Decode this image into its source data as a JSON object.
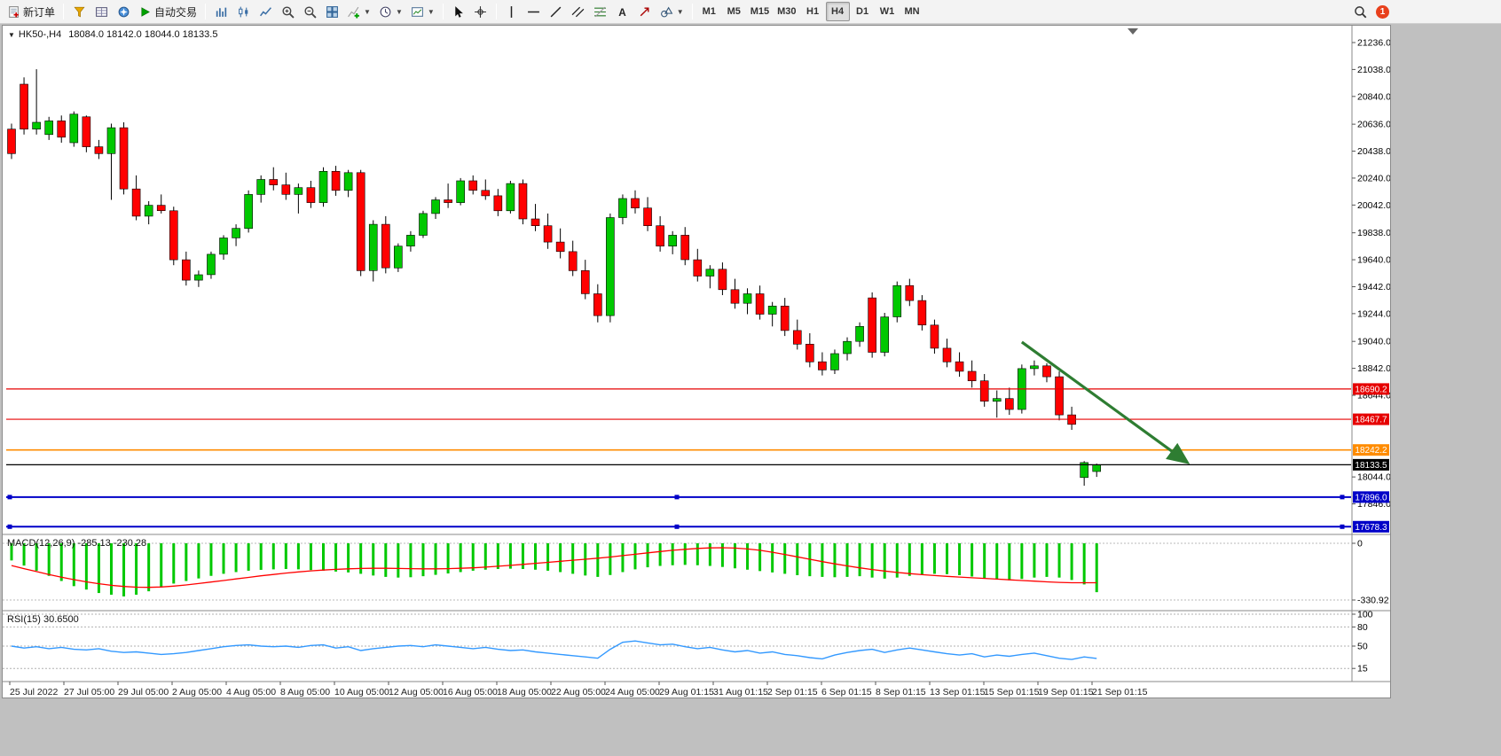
{
  "toolbar": {
    "groups": [
      {
        "items": [
          {
            "icon": "new-order",
            "label": "新订单",
            "name": "new-order-button"
          }
        ]
      },
      {
        "items": [
          {
            "icon": "market-watch",
            "name": "market-watch-button"
          },
          {
            "icon": "data-window",
            "name": "data-window-button"
          },
          {
            "icon": "navigator",
            "name": "navigator-button"
          },
          {
            "icon": "autotrade",
            "label": "自动交易",
            "name": "autotrade-button"
          }
        ]
      },
      {
        "items": [
          {
            "icon": "bar-chart",
            "name": "bar-chart-button"
          },
          {
            "icon": "candle-chart",
            "name": "candle-chart-button"
          },
          {
            "icon": "line-chart",
            "name": "line-chart-button"
          },
          {
            "icon": "zoom-in",
            "name": "zoom-in-button"
          },
          {
            "icon": "zoom-out",
            "name": "zoom-out-button"
          },
          {
            "icon": "tile-windows",
            "name": "tile-windows-button"
          },
          {
            "icon": "indicators",
            "caret": true,
            "name": "indicators-button"
          },
          {
            "icon": "clock",
            "caret": true,
            "name": "periods-button"
          },
          {
            "icon": "template",
            "caret": true,
            "name": "templates-button"
          }
        ]
      },
      {
        "items": [
          {
            "icon": "cursor",
            "name": "cursor-button"
          },
          {
            "icon": "crosshair",
            "name": "crosshair-button"
          }
        ]
      },
      {
        "items": [
          {
            "icon": "vline",
            "name": "vertical-line-button"
          },
          {
            "icon": "hline",
            "name": "horizontal-line-button"
          },
          {
            "icon": "trendline",
            "name": "trendline-button"
          },
          {
            "icon": "channel",
            "name": "channel-button"
          },
          {
            "icon": "fibo",
            "name": "fibonacci-button"
          },
          {
            "icon": "text",
            "name": "text-button"
          },
          {
            "icon": "arrows",
            "name": "arrows-button"
          },
          {
            "icon": "shapes",
            "caret": true,
            "name": "shapes-button"
          }
        ]
      },
      {
        "items": [
          {
            "label": "M1",
            "name": "tf-m1",
            "tf": true
          },
          {
            "label": "M5",
            "name": "tf-m5",
            "tf": true
          },
          {
            "label": "M15",
            "name": "tf-m15",
            "tf": true
          },
          {
            "label": "M30",
            "name": "tf-m30",
            "tf": true
          },
          {
            "label": "H1",
            "name": "tf-h1",
            "tf": true
          },
          {
            "label": "H4",
            "name": "tf-h4",
            "tf": true,
            "active": true
          },
          {
            "label": "D1",
            "name": "tf-d1",
            "tf": true
          },
          {
            "label": "W1",
            "name": "tf-w1",
            "tf": true
          },
          {
            "label": "MN",
            "name": "tf-mn",
            "tf": true
          }
        ]
      }
    ],
    "right": [
      {
        "icon": "search",
        "name": "search-button"
      },
      {
        "icon": "badge",
        "label": "1",
        "name": "notification-badge"
      }
    ]
  },
  "chart": {
    "menu_icon": "▼",
    "symbol": "HK50-,H4",
    "ohlc": "18084.0 18142.0 18044.0 18133.5",
    "up_color": "#00c800",
    "down_color": "#ff0000",
    "price_ticks": [
      "21236.0",
      "21038.0",
      "20840.0",
      "20636.0",
      "20438.0",
      "20240.0",
      "20042.0",
      "19838.0",
      "19640.0",
      "19442.0",
      "19244.0",
      "19040.0",
      "18842.0",
      "18644.0",
      "18044.0",
      "17846.0"
    ],
    "price_tick_values": [
      21236.0,
      21038.0,
      20840.0,
      20636.0,
      20438.0,
      20240.0,
      20042.0,
      19838.0,
      19640.0,
      19442.0,
      19244.0,
      19040.0,
      18842.0,
      18644.0,
      18044.0,
      17846.0
    ],
    "price_tags": [
      {
        "label": "18690.2",
        "price": 18690.2,
        "color": "#e60000",
        "name": "price-tag-18690-2"
      },
      {
        "label": "18467.7",
        "price": 18467.7,
        "color": "#e60000",
        "name": "price-tag-18467-7"
      },
      {
        "label": "18242.2",
        "price": 18242.2,
        "color": "#ff8c00",
        "name": "price-tag-18242-2"
      },
      {
        "label": "18133.5",
        "price": 18133.5,
        "color": "#000000",
        "name": "price-tag-18133-5"
      },
      {
        "label": "17896.0",
        "price": 17896.0,
        "color": "#0000c8",
        "name": "price-tag-17896-0"
      },
      {
        "label": "17678.3",
        "price": 17678.3,
        "color": "#0000c8",
        "name": "price-tag-17678-3"
      }
    ],
    "hlines": [
      {
        "price": 18690.2,
        "color": "#e60000",
        "width": 1.2,
        "handles": false,
        "name": "hline-red-18690-2"
      },
      {
        "price": 18467.7,
        "color": "#e60000",
        "width": 1.2,
        "handles": false,
        "name": "hline-red-18467-7"
      },
      {
        "price": 18242.2,
        "color": "#ff8c00",
        "width": 1.6,
        "handles": false,
        "name": "hline-orange-18242-2"
      },
      {
        "price": 18133.5,
        "color": "#000000",
        "width": 1.2,
        "handles": false,
        "name": "hline-black-18133-5"
      },
      {
        "price": 17896.0,
        "color": "#0000c8",
        "width": 2,
        "handles": true,
        "name": "hline-blue-17896-0"
      },
      {
        "price": 17678.3,
        "color": "#0000c8",
        "width": 2,
        "handles": true,
        "name": "hline-blue-17678-3"
      }
    ],
    "arrow": {
      "from_index": 81,
      "from_price": 19035,
      "to_index": 94.2,
      "to_price": 18155,
      "color": "#2e7d32"
    },
    "candles": [
      [
        20600,
        20640,
        20380,
        20420
      ],
      [
        20930,
        20980,
        20560,
        20600
      ],
      [
        20600,
        21040,
        20560,
        20650
      ],
      [
        20560,
        20690,
        20520,
        20660
      ],
      [
        20660,
        20700,
        20500,
        20540
      ],
      [
        20500,
        20730,
        20470,
        20710
      ],
      [
        20690,
        20700,
        20430,
        20470
      ],
      [
        20470,
        20520,
        20380,
        20420
      ],
      [
        20420,
        20640,
        20080,
        20610
      ],
      [
        20610,
        20650,
        20120,
        20160
      ],
      [
        20160,
        20260,
        19930,
        19960
      ],
      [
        19960,
        20070,
        19900,
        20040
      ],
      [
        20040,
        20120,
        19980,
        20000
      ],
      [
        20000,
        20030,
        19600,
        19640
      ],
      [
        19640,
        19700,
        19450,
        19490
      ],
      [
        19490,
        19560,
        19440,
        19530
      ],
      [
        19530,
        19700,
        19500,
        19680
      ],
      [
        19680,
        19820,
        19640,
        19800
      ],
      [
        19800,
        19900,
        19740,
        19870
      ],
      [
        19870,
        20150,
        19840,
        20120
      ],
      [
        20120,
        20260,
        20060,
        20230
      ],
      [
        20230,
        20320,
        20150,
        20190
      ],
      [
        20190,
        20280,
        20080,
        20120
      ],
      [
        20120,
        20200,
        19980,
        20170
      ],
      [
        20170,
        20220,
        20020,
        20060
      ],
      [
        20060,
        20320,
        20030,
        20290
      ],
      [
        20290,
        20330,
        20110,
        20150
      ],
      [
        20150,
        20300,
        20100,
        20280
      ],
      [
        20280,
        20300,
        19520,
        19560
      ],
      [
        19560,
        19930,
        19480,
        19900
      ],
      [
        19900,
        19960,
        19540,
        19580
      ],
      [
        19580,
        19760,
        19550,
        19740
      ],
      [
        19740,
        19850,
        19700,
        19820
      ],
      [
        19820,
        20000,
        19800,
        19980
      ],
      [
        19980,
        20100,
        19940,
        20080
      ],
      [
        20080,
        20200,
        20020,
        20060
      ],
      [
        20060,
        20240,
        20040,
        20220
      ],
      [
        20220,
        20260,
        20120,
        20150
      ],
      [
        20150,
        20230,
        20080,
        20110
      ],
      [
        20110,
        20160,
        19960,
        20000
      ],
      [
        20000,
        20220,
        19980,
        20200
      ],
      [
        20200,
        20230,
        19900,
        19940
      ],
      [
        19940,
        20050,
        19850,
        19890
      ],
      [
        19890,
        19980,
        19720,
        19770
      ],
      [
        19770,
        19870,
        19650,
        19700
      ],
      [
        19700,
        19780,
        19520,
        19560
      ],
      [
        19560,
        19640,
        19350,
        19390
      ],
      [
        19390,
        19460,
        19180,
        19230
      ],
      [
        19230,
        19980,
        19180,
        19950
      ],
      [
        19950,
        20120,
        19900,
        20090
      ],
      [
        20090,
        20150,
        19980,
        20020
      ],
      [
        20020,
        20100,
        19850,
        19890
      ],
      [
        19890,
        19960,
        19700,
        19740
      ],
      [
        19740,
        19850,
        19680,
        19820
      ],
      [
        19820,
        19880,
        19600,
        19640
      ],
      [
        19640,
        19720,
        19480,
        19520
      ],
      [
        19520,
        19600,
        19430,
        19570
      ],
      [
        19570,
        19620,
        19380,
        19420
      ],
      [
        19420,
        19500,
        19280,
        19320
      ],
      [
        19320,
        19430,
        19240,
        19390
      ],
      [
        19390,
        19450,
        19200,
        19240
      ],
      [
        19240,
        19330,
        19150,
        19300
      ],
      [
        19300,
        19360,
        19080,
        19120
      ],
      [
        19120,
        19200,
        18980,
        19020
      ],
      [
        19020,
        19100,
        18850,
        18890
      ],
      [
        18890,
        18960,
        18790,
        18830
      ],
      [
        18830,
        18980,
        18800,
        18950
      ],
      [
        18950,
        19070,
        18900,
        19040
      ],
      [
        19040,
        19180,
        19000,
        19150
      ],
      [
        19360,
        19400,
        18920,
        18960
      ],
      [
        18960,
        19250,
        18930,
        19220
      ],
      [
        19220,
        19480,
        19180,
        19450
      ],
      [
        19450,
        19500,
        19300,
        19340
      ],
      [
        19340,
        19380,
        19120,
        19160
      ],
      [
        19160,
        19200,
        18950,
        18990
      ],
      [
        18990,
        19060,
        18850,
        18890
      ],
      [
        18890,
        18960,
        18780,
        18820
      ],
      [
        18820,
        18900,
        18700,
        18750
      ],
      [
        18750,
        18800,
        18560,
        18600
      ],
      [
        18600,
        18680,
        18480,
        18620
      ],
      [
        18620,
        18700,
        18500,
        18540
      ],
      [
        18540,
        18870,
        18510,
        18840
      ],
      [
        18840,
        18900,
        18790,
        18860
      ],
      [
        18860,
        18880,
        18740,
        18780
      ],
      [
        18780,
        18820,
        18460,
        18500
      ],
      [
        18500,
        18560,
        18390,
        18430
      ],
      [
        18040,
        18160,
        17980,
        18150
      ],
      [
        18084,
        18142,
        18044,
        18133.5
      ]
    ],
    "dates": [
      "25 Jul 2022",
      "27 Jul 05:00",
      "29 Jul 05:00",
      "2 Aug 05:00",
      "4 Aug 05:00",
      "8 Aug 05:00",
      "10 Aug 05:00",
      "12 Aug 05:00",
      "16 Aug 05:00",
      "18 Aug 05:00",
      "22 Aug 05:00",
      "24 Aug 05:00",
      "29 Aug 01:15",
      "31 Aug 01:15",
      "2 Sep 01:15",
      "6 Sep 01:15",
      "8 Sep 01:15",
      "13 Sep 01:15",
      "15 Sep 01:15",
      "19 Sep 01:15",
      "21 Sep 01:15"
    ]
  },
  "macd": {
    "label": "MACD(12,26,9)",
    "value_main": "-285.13",
    "value_signal": "-230.28",
    "axis_zero": "0",
    "axis_min": "-330.92",
    "hist_color": "#00c800",
    "signal_color": "#ff0000",
    "hist": [
      -100,
      -130,
      -160,
      -190,
      -220,
      -250,
      -270,
      -290,
      -300,
      -310,
      -300,
      -280,
      -255,
      -235,
      -220,
      -205,
      -190,
      -178,
      -168,
      -160,
      -155,
      -152,
      -150,
      -152,
      -156,
      -160,
      -165,
      -170,
      -178,
      -188,
      -196,
      -200,
      -198,
      -192,
      -184,
      -176,
      -168,
      -160,
      -154,
      -150,
      -148,
      -150,
      -154,
      -160,
      -168,
      -178,
      -188,
      -196,
      -185,
      -168,
      -152,
      -140,
      -132,
      -128,
      -126,
      -128,
      -132,
      -138,
      -146,
      -154,
      -162,
      -170,
      -178,
      -186,
      -192,
      -196,
      -198,
      -196,
      -192,
      -200,
      -206,
      -200,
      -190,
      -182,
      -178,
      -180,
      -186,
      -194,
      -202,
      -210,
      -216,
      -208,
      -200,
      -196,
      -200,
      -214,
      -240,
      -285.13
    ],
    "signal": [
      -130,
      -148,
      -165,
      -182,
      -198,
      -212,
      -225,
      -236,
      -245,
      -252,
      -256,
      -257,
      -255,
      -250,
      -243,
      -235,
      -226,
      -217,
      -208,
      -199,
      -190,
      -182,
      -174,
      -167,
      -161,
      -156,
      -152,
      -149,
      -147,
      -146,
      -146,
      -147,
      -148,
      -149,
      -149,
      -148,
      -146,
      -143,
      -139,
      -134,
      -129,
      -123,
      -117,
      -111,
      -105,
      -99,
      -93,
      -87,
      -80,
      -72,
      -64,
      -56,
      -48,
      -41,
      -35,
      -30,
      -27,
      -26,
      -28,
      -33,
      -41,
      -52,
      -65,
      -79,
      -93,
      -107,
      -120,
      -132,
      -143,
      -153,
      -162,
      -170,
      -177,
      -183,
      -188,
      -193,
      -197,
      -201,
      -205,
      -209,
      -213,
      -217,
      -221,
      -225,
      -228,
      -230,
      -230,
      -230.28
    ]
  },
  "rsi": {
    "label": "RSI(15)",
    "value": "30.6500",
    "axis_ticks": [
      "100",
      "80",
      "50",
      "15"
    ],
    "axis_tick_values": [
      100,
      80,
      50,
      15
    ],
    "levels": [
      100,
      80,
      50,
      15
    ],
    "color": "#3399ff",
    "values": [
      50,
      47,
      49,
      46,
      48,
      45,
      44,
      46,
      42,
      40,
      41,
      39,
      37,
      38,
      40,
      43,
      46,
      49,
      51,
      52,
      50,
      49,
      50,
      48,
      51,
      52,
      47,
      49,
      43,
      46,
      48,
      50,
      51,
      49,
      52,
      50,
      48,
      46,
      48,
      45,
      43,
      44,
      41,
      39,
      37,
      35,
      33,
      31,
      45,
      56,
      58,
      55,
      52,
      53,
      49,
      46,
      48,
      44,
      41,
      43,
      39,
      41,
      37,
      35,
      32,
      30,
      36,
      40,
      43,
      45,
      40,
      44,
      47,
      44,
      41,
      38,
      36,
      38,
      33,
      36,
      34,
      37,
      39,
      35,
      31,
      29,
      33,
      30.65
    ]
  }
}
